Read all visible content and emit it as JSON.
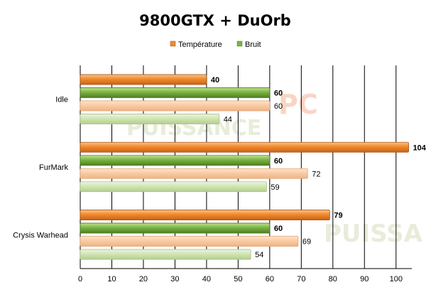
{
  "chart_data": {
    "type": "bar",
    "orientation": "horizontal",
    "title": "9800GTX + DuOrb",
    "categories": [
      "Idle",
      "FurMark",
      "Crysis Warhead"
    ],
    "series": [
      {
        "name": "Température",
        "values": [
          40,
          104,
          79
        ],
        "color": "#f08a2a",
        "style": "solid",
        "label_weight": "bold"
      },
      {
        "name": "Bruit",
        "values": [
          60,
          60,
          60
        ],
        "color": "#7cb342",
        "style": "solid",
        "label_weight": "bold"
      },
      {
        "name": "",
        "values": [
          60,
          72,
          69
        ],
        "color": "#f9c9a0",
        "style": "faded",
        "label_weight": "normal"
      },
      {
        "name": "",
        "values": [
          44,
          59,
          54
        ],
        "color": "#cfe3b2",
        "style": "faded",
        "label_weight": "normal"
      }
    ],
    "xlim": [
      0,
      105
    ],
    "xticks": [
      "0",
      "10",
      "20",
      "30",
      "40",
      "50",
      "60",
      "70",
      "80",
      "90",
      "100"
    ],
    "grid": true,
    "legend": "top-center",
    "legend_entries": [
      "Température",
      "Bruit"
    ],
    "watermark": "PUISSANCE PC"
  }
}
